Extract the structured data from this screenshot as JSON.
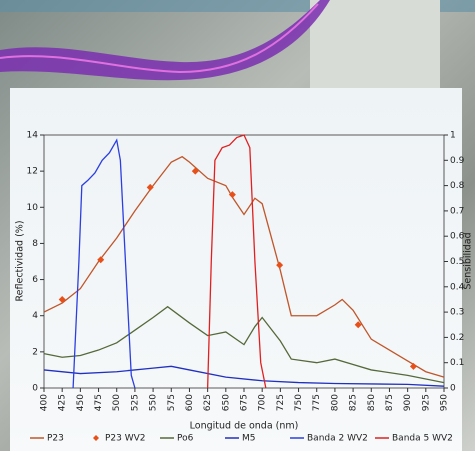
{
  "chart_data": {
    "type": "line",
    "x_label": "Longitud de onda (nm)",
    "y_label": "Reflectividad (%)",
    "y2_label": "Sensibilidad",
    "xlim": [
      400,
      950
    ],
    "xticks": [
      400,
      425,
      450,
      475,
      500,
      525,
      550,
      575,
      600,
      625,
      650,
      675,
      700,
      725,
      750,
      775,
      800,
      825,
      850,
      875,
      900,
      925,
      950
    ],
    "ylim": [
      0,
      14
    ],
    "yticks": [
      0,
      2,
      4,
      6,
      8,
      10,
      12,
      14
    ],
    "y2lim": [
      0,
      1
    ],
    "y2ticks": [
      0,
      0.1,
      0.2,
      0.3,
      0.4,
      0.5,
      0.6,
      0.7,
      0.8,
      0.9,
      1
    ],
    "series": [
      {
        "name": "P23",
        "color": "#c0562a",
        "style": "line",
        "x": [
          400,
          425,
          450,
          475,
          500,
          525,
          550,
          575,
          590,
          600,
          625,
          650,
          660,
          675,
          690,
          700,
          725,
          740,
          775,
          800,
          810,
          825,
          850,
          875,
          900,
          925,
          950
        ],
        "values": [
          4.2,
          4.7,
          5.5,
          7,
          8.3,
          9.8,
          11.2,
          12.5,
          12.8,
          12.5,
          11.6,
          11.2,
          10.5,
          9.6,
          10.5,
          10.2,
          6.5,
          4,
          4,
          4.6,
          4.9,
          4.3,
          2.7,
          2.1,
          1.5,
          0.9,
          0.6
        ]
      },
      {
        "name": "P23 WV2",
        "color": "#e8501a",
        "style": "markers",
        "x": [
          425,
          478,
          546,
          608,
          659,
          724,
          832,
          908
        ],
        "values": [
          4.9,
          7.1,
          11.1,
          12,
          10.7,
          6.8,
          3.5,
          1.2
        ]
      },
      {
        "name": "Po6",
        "color": "#55693a",
        "style": "line",
        "x": [
          400,
          425,
          450,
          475,
          500,
          525,
          550,
          570,
          600,
          625,
          650,
          675,
          690,
          700,
          725,
          740,
          775,
          800,
          825,
          850,
          900,
          950
        ],
        "values": [
          1.9,
          1.7,
          1.8,
          2.1,
          2.5,
          3.2,
          3.9,
          4.5,
          3.6,
          2.9,
          3.1,
          2.4,
          3.4,
          3.9,
          2.6,
          1.6,
          1.4,
          1.6,
          1.3,
          1.0,
          0.7,
          0.3
        ]
      },
      {
        "name": "M5",
        "color": "#2030c0",
        "style": "line",
        "x": [
          400,
          450,
          500,
          550,
          575,
          600,
          650,
          700,
          750,
          800,
          900,
          950
        ],
        "values": [
          1.0,
          0.8,
          0.9,
          1.1,
          1.2,
          1.0,
          0.6,
          0.4,
          0.3,
          0.25,
          0.2,
          0.1
        ]
      },
      {
        "name": "Banda 2 WV2",
        "color": "#2b3fe0",
        "style": "line",
        "axis": "y2",
        "x": [
          440,
          448,
          452,
          460,
          470,
          480,
          490,
          500,
          505,
          512,
          520,
          525
        ],
        "values": [
          0,
          0.5,
          0.8,
          0.82,
          0.85,
          0.9,
          0.93,
          0.98,
          0.9,
          0.5,
          0.05,
          0
        ]
      },
      {
        "name": "Banda 5 WV2",
        "color": "#e02020",
        "style": "line",
        "axis": "y2",
        "x": [
          625,
          630,
          635,
          645,
          655,
          665,
          675,
          683,
          690,
          698,
          705
        ],
        "values": [
          0,
          0.5,
          0.9,
          0.95,
          0.96,
          0.99,
          1.0,
          0.95,
          0.5,
          0.1,
          0
        ]
      }
    ]
  }
}
